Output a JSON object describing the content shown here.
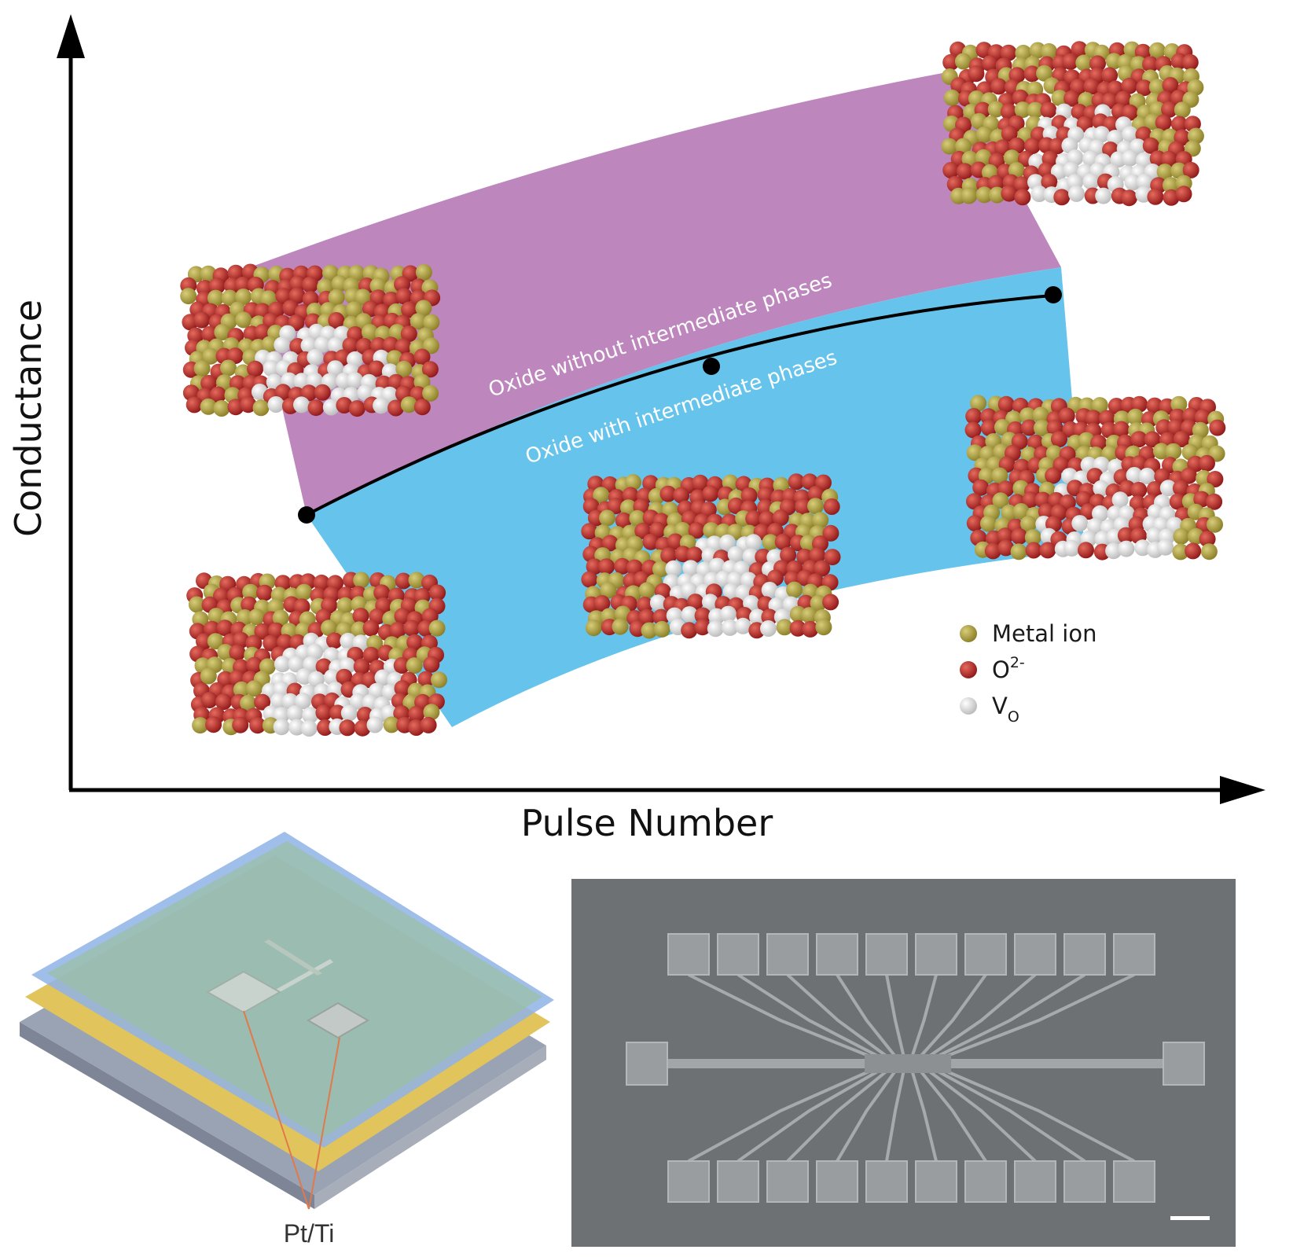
{
  "axes": {
    "y_label": "Conductance",
    "x_label": "Pulse Number"
  },
  "bands": {
    "upper_label": "Oxide without intermediate phases",
    "lower_label": "Oxide with intermediate phases",
    "upper_color": "#bd86bd",
    "lower_color": "#66c4ec"
  },
  "legend": {
    "items": [
      {
        "label": "Metal ion",
        "color": "#a89a3c"
      },
      {
        "label": "O",
        "sup": "2-",
        "color": "#b82c2c"
      },
      {
        "label": "V",
        "sub": "O",
        "color": "#ececec"
      }
    ]
  },
  "device": {
    "callout_label": "Pt/Ti",
    "layer_colors": {
      "top": "#8fb3e6",
      "gold": "#e2c45c",
      "green": "#9bbfa6",
      "base": "#9aa3b3"
    }
  },
  "sem": {
    "background": "#6e7173",
    "pad_color": "#9a9d9f"
  }
}
